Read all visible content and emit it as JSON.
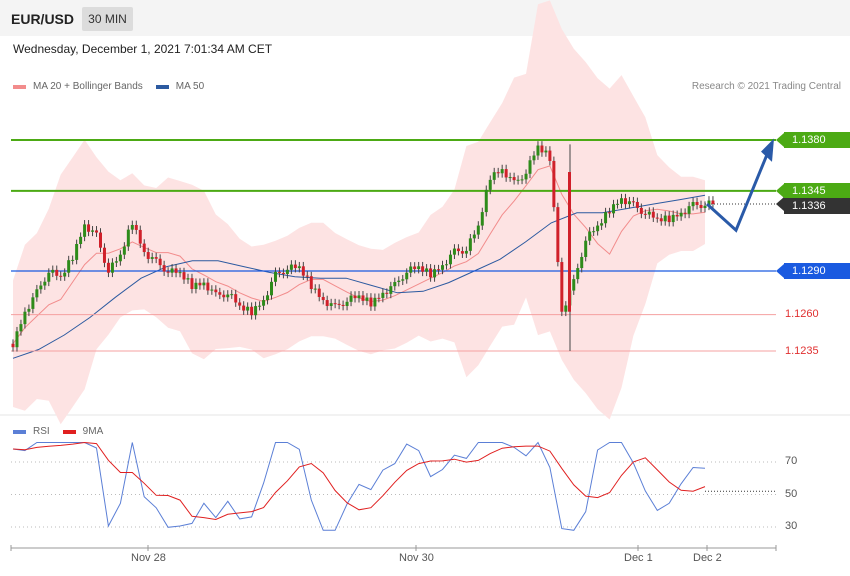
{
  "header": {
    "symbol": "EUR/USD",
    "timeframe": "30 MIN"
  },
  "datetime": "Wednesday, December 1, 2021 7:01:34 AM CET",
  "legend": {
    "items": [
      {
        "label": "MA 20 + Bollinger Bands",
        "color": "#f28c8c"
      },
      {
        "label": "MA 50",
        "color": "#2c5aa0"
      }
    ],
    "credit": "Research © 2021 Trading Central"
  },
  "chart_data": {
    "type": "line",
    "title": "",
    "xlabel": "",
    "ylabel": "",
    "x_ticks": [
      "Nov 28",
      "Nov 30",
      "Dec 1",
      "Dec 2"
    ],
    "ylim": [
      1.1215,
      1.14
    ],
    "levels": [
      {
        "value": 1.138,
        "label": "1.1380",
        "kind": "resistance"
      },
      {
        "value": 1.1345,
        "label": "1.1345",
        "kind": "resistance"
      },
      {
        "value": 1.1336,
        "label": "1.1336",
        "kind": "current"
      },
      {
        "value": 1.129,
        "label": "1.1290",
        "kind": "pivot"
      },
      {
        "value": 1.126,
        "label": "1.1260",
        "kind": "support"
      },
      {
        "value": 1.1235,
        "label": "1.1235",
        "kind": "support"
      }
    ],
    "price_series": [
      1.124,
      1.1262,
      1.1275,
      1.129,
      1.1285,
      1.13,
      1.1322,
      1.1314,
      1.129,
      1.13,
      1.1324,
      1.1303,
      1.1296,
      1.129,
      1.1288,
      1.128,
      1.1282,
      1.1273,
      1.1275,
      1.1265,
      1.1262,
      1.127,
      1.1287,
      1.1292,
      1.1292,
      1.128,
      1.127,
      1.1265,
      1.127,
      1.1272,
      1.1268,
      1.1275,
      1.128,
      1.129,
      1.1292,
      1.1288,
      1.1294,
      1.1303,
      1.1305,
      1.132,
      1.1355,
      1.136,
      1.135,
      1.1358,
      1.1375,
      1.1368,
      1.1262,
      1.1282,
      1.1312,
      1.132,
      1.1332,
      1.134,
      1.1335,
      1.133,
      1.1325,
      1.1326,
      1.133,
      1.1335,
      1.1336
    ],
    "ma50": [
      1.123,
      1.1236,
      1.1246,
      1.1258,
      1.1272,
      1.1285,
      1.1293,
      1.1297,
      1.1297,
      1.1293,
      1.1289,
      1.1286,
      1.1285,
      1.1285,
      1.128,
      1.1275,
      1.1276,
      1.1282,
      1.129,
      1.1298,
      1.131,
      1.1323,
      1.133,
      1.133,
      1.1333,
      1.1336,
      1.1339,
      1.1342
    ],
    "rsi": {
      "hlines": [
        70,
        50,
        30
      ],
      "series": [
        {
          "name": "RSI",
          "color": "#5b7fd6"
        },
        {
          "name": "9MA",
          "color": "#e02020"
        }
      ]
    },
    "projection": "up arrow toward 1.1380"
  },
  "right_scale": {
    "rsi_labels": [
      "70",
      "50",
      "30"
    ]
  }
}
